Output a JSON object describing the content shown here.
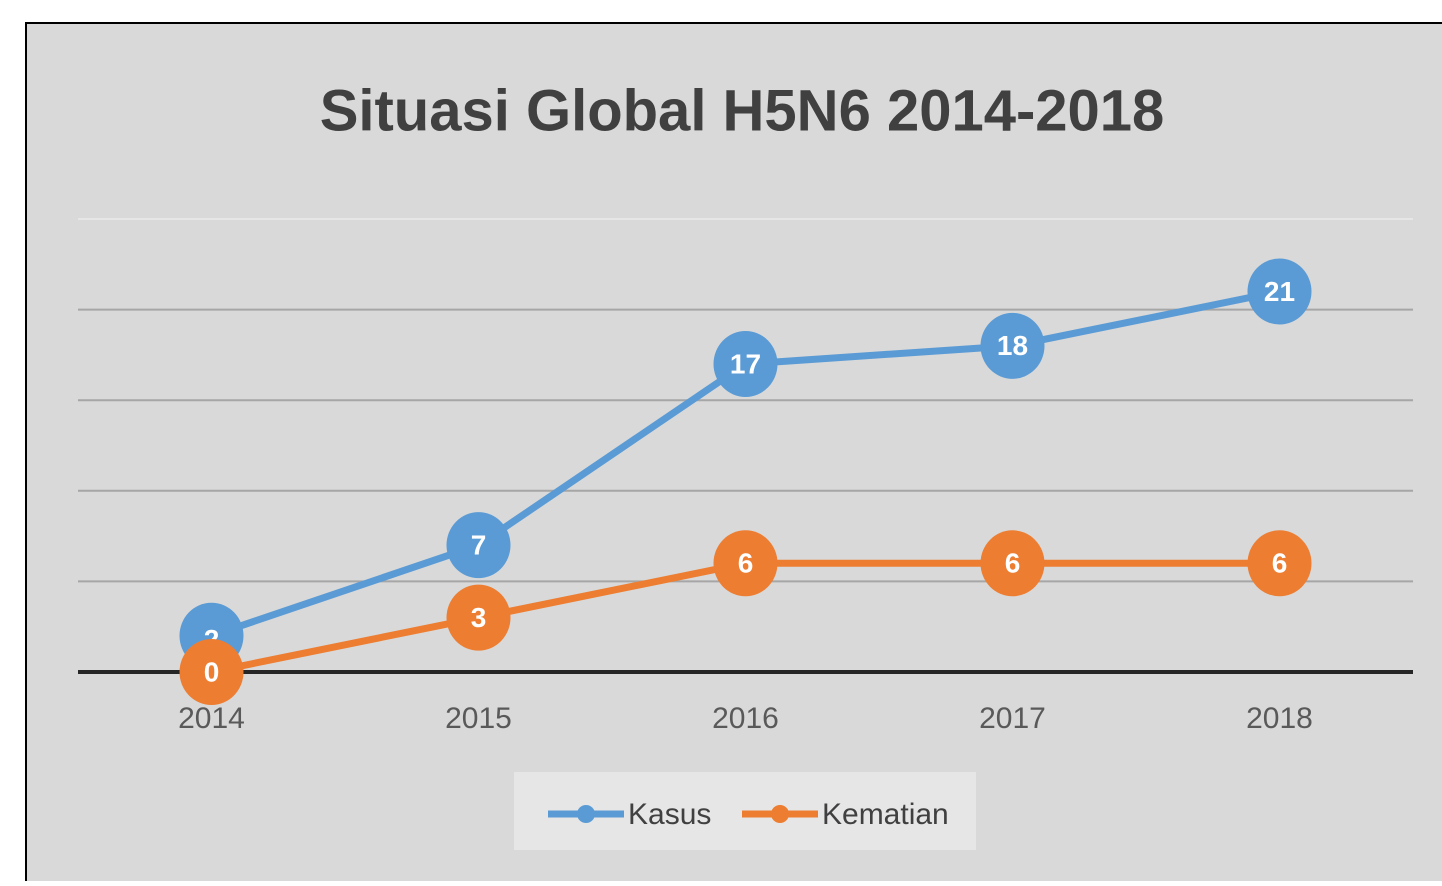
{
  "chart_data": {
    "type": "line",
    "title": "Situasi Global H5N6 2014-2018",
    "categories": [
      "2014",
      "2015",
      "2016",
      "2017",
      "2018"
    ],
    "series": [
      {
        "name": "Kasus",
        "color": "#5b9bd5",
        "values": [
          2,
          7,
          17,
          18,
          21
        ]
      },
      {
        "name": "Kematian",
        "color": "#ed7d31",
        "values": [
          0,
          3,
          6,
          6,
          6
        ]
      }
    ],
    "ylim": [
      0,
      25
    ],
    "yticks": [
      0,
      5,
      10,
      15,
      20,
      25
    ],
    "grid": true,
    "legend": "bottom"
  }
}
